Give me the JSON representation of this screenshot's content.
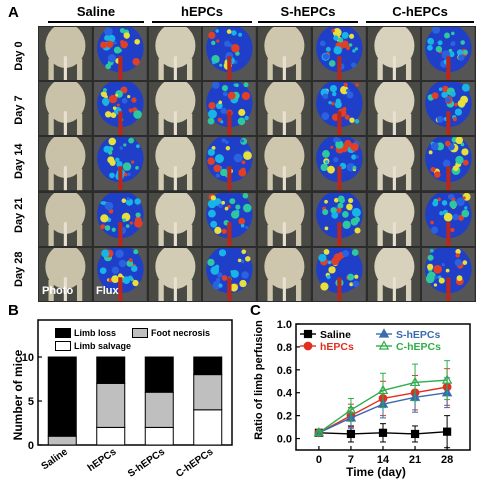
{
  "panels": {
    "a": "A",
    "b": "B",
    "c": "C"
  },
  "panel_a": {
    "columns": [
      "Saline",
      "hEPCs",
      "S-hEPCs",
      "C-hEPCs"
    ],
    "rows": [
      "Day 0",
      "Day 7",
      "Day 14",
      "Day 21",
      "Day 28"
    ],
    "photo_label": "Photo",
    "flux_label": "Flux"
  },
  "colors": {
    "limb_loss": "#000000",
    "foot_necrosis": "#bfbfbf",
    "limb_salvage": "#ffffff",
    "saline": "#000000",
    "hepcs": "#e03020",
    "s_hepcs": "#3a6ab0",
    "c_hepcs": "#2fae4a"
  },
  "chart_data": [
    {
      "type": "bar",
      "stacked": true,
      "categories": [
        "Saline",
        "hEPCs",
        "S-hEPCs",
        "C-hEPCs"
      ],
      "series": [
        {
          "name": "Limb salvage",
          "values": [
            0,
            2,
            2,
            4
          ]
        },
        {
          "name": "Foot necrosis",
          "values": [
            1,
            5,
            4,
            4
          ]
        },
        {
          "name": "Limb loss",
          "values": [
            9,
            3,
            4,
            2
          ]
        }
      ],
      "xlabel": "",
      "ylabel": "Number of mice",
      "ylim": [
        0,
        10
      ],
      "yticks": [
        0,
        5,
        10
      ],
      "legend": [
        "Limb loss",
        "Foot necrosis",
        "Limb salvage"
      ]
    },
    {
      "type": "line",
      "x": [
        0,
        7,
        14,
        21,
        28
      ],
      "xticks": [
        "0",
        "7",
        "14",
        "21",
        "28"
      ],
      "series": [
        {
          "name": "Saline",
          "values": [
            0.05,
            0.04,
            0.05,
            0.04,
            0.06
          ],
          "err": [
            0.02,
            0.07,
            0.08,
            0.07,
            0.14
          ]
        },
        {
          "name": "hEPCs",
          "values": [
            0.05,
            0.2,
            0.35,
            0.4,
            0.45
          ],
          "err": [
            0.02,
            0.1,
            0.15,
            0.15,
            0.16
          ]
        },
        {
          "name": "S-hEPCs",
          "values": [
            0.05,
            0.18,
            0.3,
            0.36,
            0.4
          ],
          "err": [
            0.02,
            0.09,
            0.12,
            0.13,
            0.13
          ]
        },
        {
          "name": "C-hEPCs",
          "values": [
            0.05,
            0.25,
            0.42,
            0.49,
            0.51
          ],
          "err": [
            0.02,
            0.1,
            0.15,
            0.16,
            0.17
          ]
        }
      ],
      "xlabel": "Time (day)",
      "ylabel": "Ratio of limb perfusion",
      "ylim": [
        -0.1,
        1.0
      ],
      "yticks": [
        "0.0",
        "0.2",
        "0.4",
        "0.6",
        "0.8",
        "1.0"
      ],
      "legend_position": "top-left"
    }
  ]
}
